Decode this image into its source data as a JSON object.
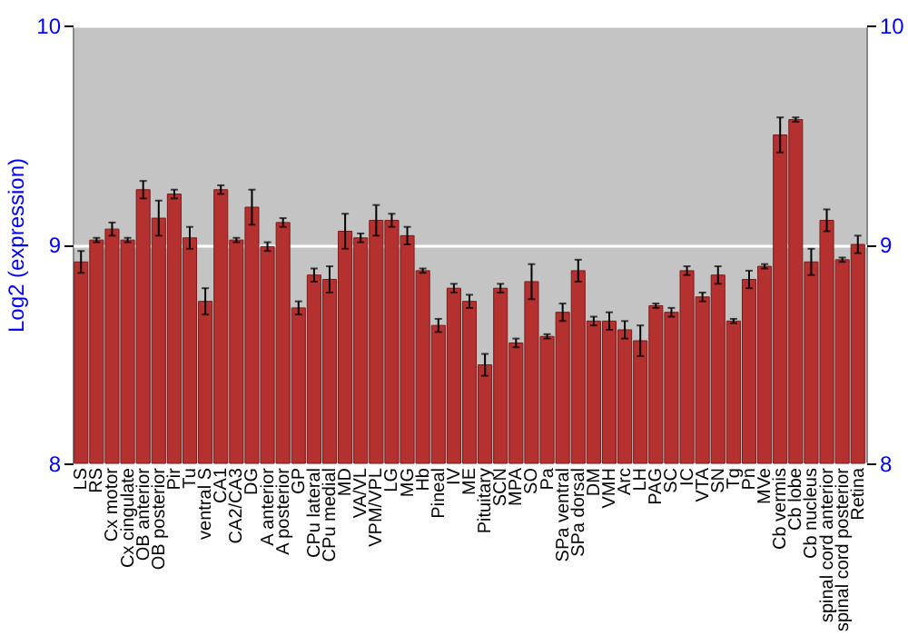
{
  "chart_data": {
    "type": "bar",
    "ylabel": "Log2 (expression)",
    "categories": [
      "LS",
      "RS",
      "Cx motor",
      "Cx cingulate",
      "OB anterior",
      "OB posterior",
      "Pir",
      "Tu",
      "ventral S",
      "CA1",
      "CA2/CA3",
      "DG",
      "A anterior",
      "A posterior",
      "GP",
      "CPu lateral",
      "CPu medial",
      "MD",
      "VA/VL",
      "VPM/VPL",
      "LG",
      "MG",
      "Hb",
      "Pineal",
      "IV",
      "ME",
      "Pituitary",
      "SCN",
      "MPA",
      "SO",
      "Pa",
      "SPa ventral",
      "SPa dorsal",
      "DM",
      "VMH",
      "Arc",
      "LH",
      "PAG",
      "SC",
      "IC",
      "VTA",
      "SN",
      "Tg",
      "Pn",
      "MVe",
      "Cb vermis",
      "Cb lobe",
      "Cb nucleus",
      "spinal cord anterior",
      "spinal cord posterior",
      "Retina"
    ],
    "values": [
      8.92,
      9.02,
      9.07,
      9.02,
      9.25,
      9.12,
      9.23,
      9.03,
      8.74,
      9.25,
      9.02,
      9.17,
      8.99,
      9.1,
      8.71,
      8.86,
      8.84,
      9.06,
      9.03,
      9.11,
      9.11,
      9.04,
      8.88,
      8.63,
      8.8,
      8.74,
      8.45,
      8.8,
      8.55,
      8.83,
      8.58,
      8.69,
      8.88,
      8.65,
      8.65,
      8.61,
      8.56,
      8.72,
      8.69,
      8.88,
      8.76,
      8.86,
      8.65,
      8.84,
      8.9,
      9.5,
      9.57,
      8.92,
      9.11,
      8.93,
      9.0
    ],
    "errors": [
      0.05,
      0.01,
      0.03,
      0.01,
      0.04,
      0.08,
      0.02,
      0.05,
      0.06,
      0.02,
      0.01,
      0.08,
      0.02,
      0.02,
      0.03,
      0.03,
      0.06,
      0.08,
      0.02,
      0.07,
      0.03,
      0.04,
      0.01,
      0.03,
      0.02,
      0.03,
      0.05,
      0.02,
      0.02,
      0.08,
      0.01,
      0.04,
      0.05,
      0.02,
      0.04,
      0.04,
      0.07,
      0.01,
      0.02,
      0.02,
      0.02,
      0.04,
      0.01,
      0.04,
      0.01,
      0.08,
      0.01,
      0.06,
      0.05,
      0.01,
      0.04
    ],
    "color": "#b5312f",
    "ylim": [
      8,
      10
    ],
    "yticks": [
      8,
      9,
      10
    ],
    "y2lim": [
      8,
      10
    ],
    "y2ticks": [
      8,
      9,
      10
    ],
    "grid": "y"
  }
}
